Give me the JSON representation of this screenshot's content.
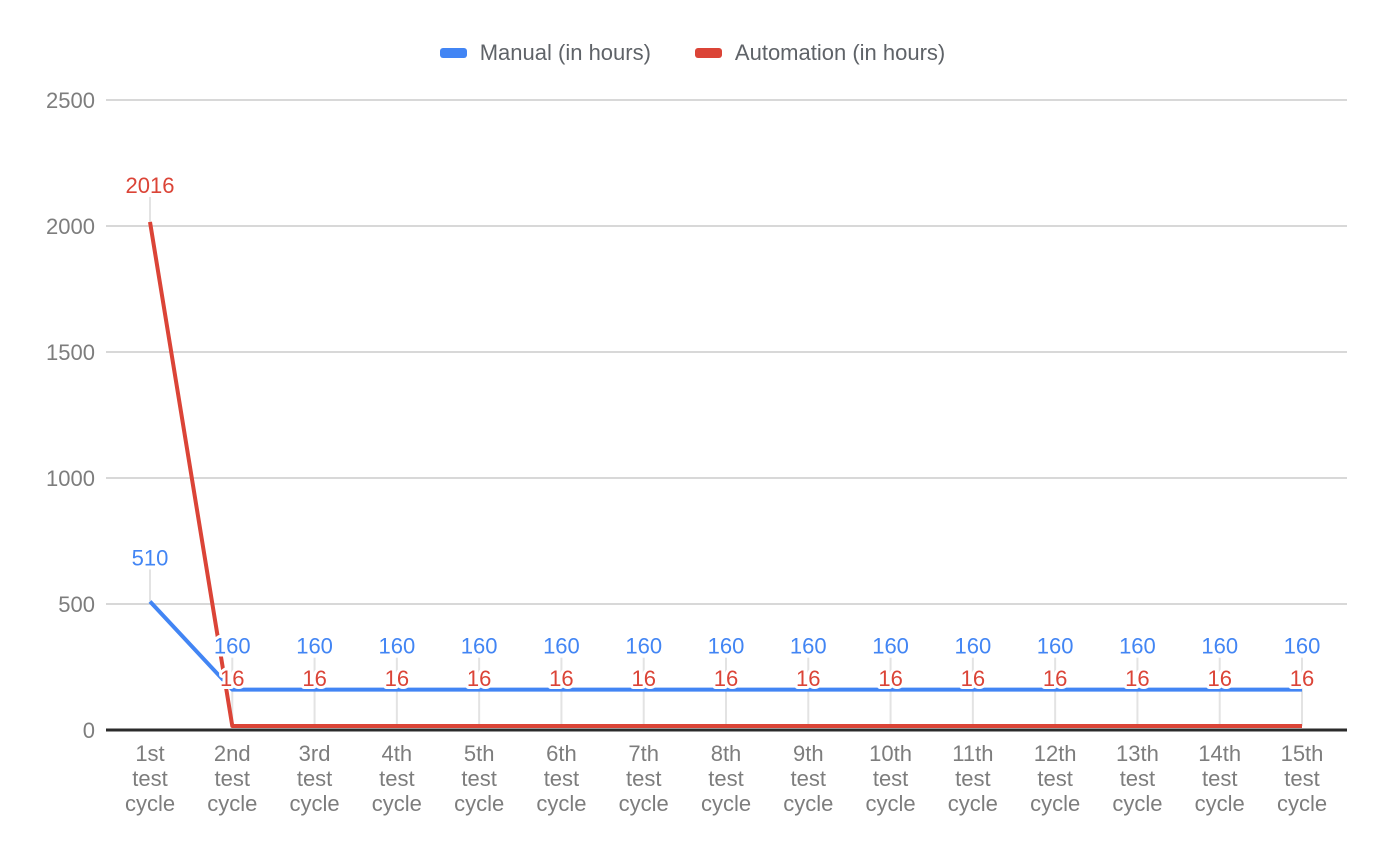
{
  "chart_data": {
    "type": "line",
    "title": "",
    "xlabel": "",
    "ylabel": "",
    "categories": [
      "1st test cycle",
      "2nd test cycle",
      "3rd test cycle",
      "4th test cycle",
      "5th test cycle",
      "6th test cycle",
      "7th test cycle",
      "8th test cycle",
      "9th test cycle",
      "10th test cycle",
      "11th test cycle",
      "12th test cycle",
      "13th test cycle",
      "14th test cycle",
      "15th test cycle"
    ],
    "series": [
      {
        "name": "Manual (in hours)",
        "color": "#4285f4",
        "values": [
          510,
          160,
          160,
          160,
          160,
          160,
          160,
          160,
          160,
          160,
          160,
          160,
          160,
          160,
          160
        ]
      },
      {
        "name": "Automation (in hours)",
        "color": "#db4437",
        "values": [
          2016,
          16,
          16,
          16,
          16,
          16,
          16,
          16,
          16,
          16,
          16,
          16,
          16,
          16,
          16
        ]
      }
    ],
    "ylim": [
      0,
      2500
    ],
    "yticks": [
      0,
      500,
      1000,
      1500,
      2000,
      2500
    ],
    "grid": "horizontal",
    "legend_position": "top",
    "data_labels": true
  },
  "colors": {
    "background": "#ffffff",
    "axis_line": "#2b2b2b",
    "gridline": "#d8d8d8",
    "leader_line": "#e3e3e3",
    "tick_label": "#7d7d7d",
    "legend_text": "#5f6368"
  }
}
